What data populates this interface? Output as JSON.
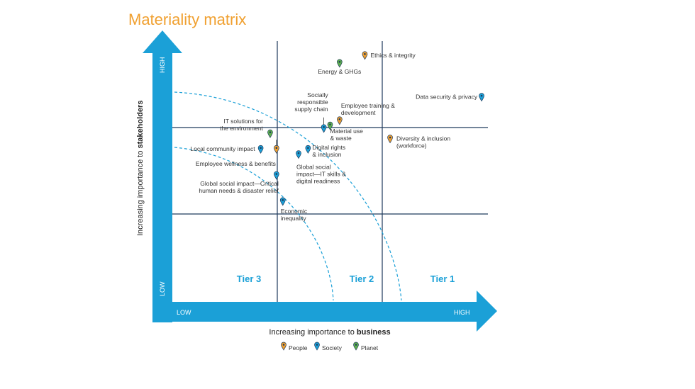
{
  "chart_data": {
    "type": "scatter",
    "title": "Materiality matrix",
    "xlabel": {
      "prefix": "Increasing importance to ",
      "emph": "business"
    },
    "ylabel": {
      "prefix": "Increasing importance to ",
      "emph": "stakeholders"
    },
    "x_low": "LOW",
    "x_high": "HIGH",
    "y_low": "LOW",
    "y_high": "HIGH",
    "xlim": [
      0,
      100
    ],
    "ylim": [
      0,
      100
    ],
    "tiers": [
      "Tier 3",
      "Tier 2",
      "Tier 1"
    ],
    "colors": {
      "axis": "#1ba0d7",
      "People": "#f0a030",
      "Society": "#1ba0d7",
      "Planet": "#5fb14d",
      "grid": "#1f3a5c",
      "title": "#f0a030"
    },
    "legend": [
      {
        "name": "People",
        "category": "People"
      },
      {
        "name": "Society",
        "category": "Society"
      },
      {
        "name": "Planet",
        "category": "Planet"
      }
    ],
    "points": [
      {
        "label": [
          "Ethics & integrity"
        ],
        "category": "People",
        "x": 61,
        "y": 93
      },
      {
        "label": [
          "Energy & GHGs"
        ],
        "category": "Planet",
        "x": 53,
        "y": 90
      },
      {
        "label": [
          "Data security & privacy"
        ],
        "category": "Society",
        "x": 98,
        "y": 77
      },
      {
        "label": [
          "Socially",
          "responsible",
          "supply chain"
        ],
        "category": "Society",
        "x": 48,
        "y": 65
      },
      {
        "label": [
          "Employee training &",
          "development"
        ],
        "category": "People",
        "x": 53,
        "y": 68
      },
      {
        "label": [
          "Material use",
          "& waste"
        ],
        "category": "Planet",
        "x": 50,
        "y": 66
      },
      {
        "label": [
          "IT solutions for",
          "the environment"
        ],
        "category": "Planet",
        "x": 31,
        "y": 63
      },
      {
        "label": [
          "Diversity & inclusion",
          "(workforce)"
        ],
        "category": "People",
        "x": 69,
        "y": 61
      },
      {
        "label": [
          "Local community impact"
        ],
        "category": "Society",
        "x": 28,
        "y": 57
      },
      {
        "label": [
          "Employee wellness & benefits"
        ],
        "category": "People",
        "x": 33,
        "y": 57
      },
      {
        "label": [
          "Digital rights",
          "& inclusion"
        ],
        "category": "Society",
        "x": 43,
        "y": 57
      },
      {
        "label": [
          "Global social",
          "impact—IT skills &",
          "digital readiness"
        ],
        "category": "Society",
        "x": 40,
        "y": 55
      },
      {
        "label": [
          "Global social impact—Critical",
          "human needs & disaster relief"
        ],
        "category": "Society",
        "x": 33,
        "y": 47
      },
      {
        "label": [
          "Economic",
          "inequality"
        ],
        "category": "Society",
        "x": 35,
        "y": 37
      }
    ]
  }
}
